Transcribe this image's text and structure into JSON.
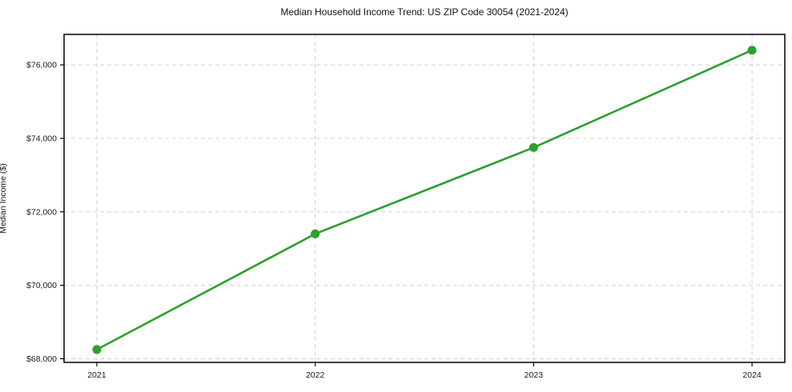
{
  "chart_data": {
    "type": "line",
    "title": "Median Household Income Trend: US ZIP Code 30054 (2021-2024)",
    "xlabel": "",
    "ylabel": "Median Income ($)",
    "x": [
      2021,
      2022,
      2023,
      2024
    ],
    "series": [
      {
        "name": "Median Household Income",
        "values": [
          68250,
          71400,
          73750,
          76400
        ]
      }
    ],
    "xtick_labels": [
      "2021",
      "2022",
      "2023",
      "2024"
    ],
    "ytick_values": [
      68000,
      70000,
      72000,
      74000,
      76000
    ],
    "ytick_labels": [
      "$68,000",
      "$70,000",
      "$72,000",
      "$74,000",
      "$76,000"
    ],
    "xlim": [
      2020.85,
      2024.15
    ],
    "ylim": [
      67900,
      76830
    ],
    "grid": true,
    "grid_style": "dashed",
    "legend": false,
    "line_color": "#2ca02c",
    "marker": "circle",
    "grid_color": "#d0d0d0",
    "spine_color": "#000000",
    "text_color": "#1a1a1a"
  }
}
